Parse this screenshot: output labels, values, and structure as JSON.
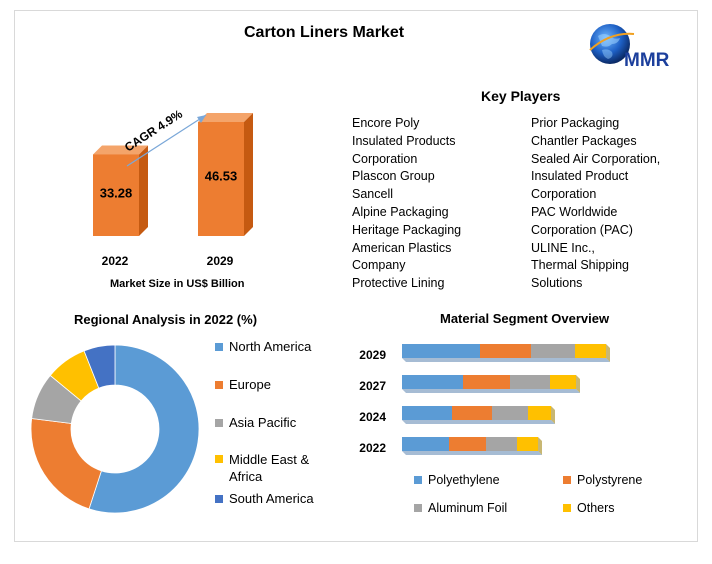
{
  "title": "Carton Liners Market",
  "logo": {
    "text": "MMR",
    "icon": "globe-icon"
  },
  "market_size": {
    "cagr_label": "CAGR 4.9%",
    "caption": "Market Size in US$ Billion"
  },
  "key_players": {
    "title": "Key Players",
    "col1": [
      "Encore Poly",
      "Insulated Products",
      "Corporation",
      "Plascon Group",
      "Sancell",
      "Alpine Packaging",
      "Heritage Packaging",
      "American Plastics",
      "Company",
      "Protective Lining"
    ],
    "col2": [
      "Prior Packaging",
      "Chantler Packages",
      "Sealed Air Corporation,",
      "Insulated Product",
      "Corporation",
      "PAC Worldwide",
      "Corporation (PAC)",
      "ULINE Inc.,",
      "Thermal Shipping",
      "Solutions"
    ]
  },
  "colors": {
    "bar_front": "#ed7d31",
    "bar_side": "#c55a11",
    "bar_top": "#f4a46a",
    "blue": "#5b9bd5",
    "orange": "#ed7d31",
    "gray": "#a5a5a5",
    "yellow": "#ffc000",
    "darkblue": "#4472c4"
  },
  "chart_data": [
    {
      "type": "bar",
      "categories": [
        "2022",
        "2029"
      ],
      "values": [
        33.28,
        46.53
      ],
      "title": "",
      "ylim": [
        0,
        50
      ]
    },
    {
      "type": "pie",
      "title": "Regional Analysis in 2022 (%)",
      "labels": [
        "North America",
        "Europe",
        "Asia Pacific",
        "Middle East & Africa",
        "South America"
      ],
      "values": [
        55,
        22,
        9,
        8,
        6
      ],
      "donut": true,
      "legend": "right"
    },
    {
      "type": "bar",
      "orientation": "horizontal",
      "stacked": true,
      "title": "Material Segment Overview",
      "categories": [
        "2029",
        "2027",
        "2024",
        "2022"
      ],
      "series": [
        {
          "name": "Polyethylene",
          "values": [
            78,
            61,
            50,
            47
          ]
        },
        {
          "name": "Polystyrene",
          "values": [
            51,
            47,
            40,
            37
          ]
        },
        {
          "name": "Aluminum Foil",
          "values": [
            44,
            40,
            36,
            31
          ]
        },
        {
          "name": "Others",
          "values": [
            31,
            26,
            23,
            21
          ]
        }
      ],
      "legend": "bottom"
    }
  ]
}
